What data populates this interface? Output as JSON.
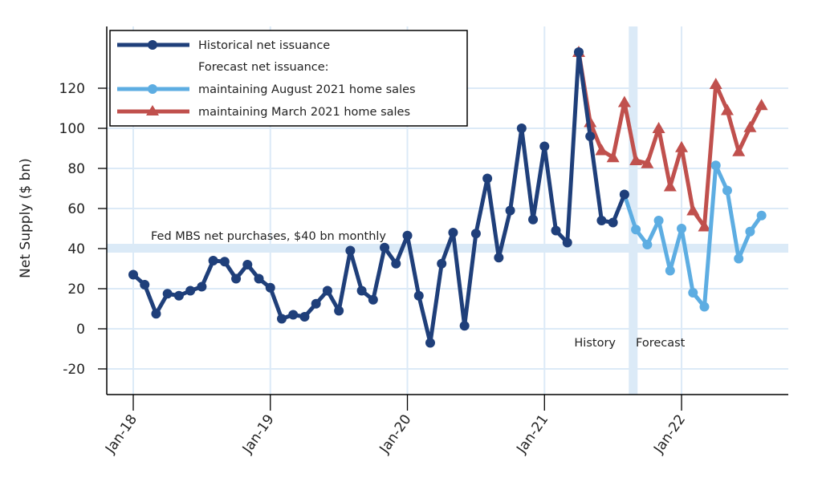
{
  "chart_data": {
    "type": "line",
    "title": "",
    "xlabel": "",
    "ylabel": "Net Supply ($ bn)",
    "ylim": [
      -32,
      145
    ],
    "yticks": [
      -20,
      0,
      20,
      40,
      60,
      80,
      100,
      120
    ],
    "ytick_labels": [
      "-20",
      "0",
      "20",
      "40",
      "60",
      "80",
      "100",
      "120"
    ],
    "x_start": "2018-01",
    "x_end": "2022-08",
    "x_unit": "month",
    "xticks": [
      "Jan-18",
      "Jan-19",
      "Jan-20",
      "Jan-21",
      "Jan-22"
    ],
    "xtick_months": [
      0,
      12,
      24,
      36,
      48
    ],
    "grid": true,
    "legend": {
      "placement": "top-left",
      "entries": [
        {
          "label": "Historical net issuance",
          "series": "historical"
        },
        {
          "label": "Forecast net issuance:",
          "series": null
        },
        {
          "label": "maintaining August 2021 home sales",
          "series": "forecast_aug"
        },
        {
          "label": "maintaining March 2021 home sales",
          "series": "forecast_mar"
        }
      ]
    },
    "series": [
      {
        "name": "Historical net issuance",
        "key": "historical",
        "color": "#1f3f7a",
        "marker": "circle",
        "start_month": 0,
        "values": [
          27,
          22,
          7.5,
          17.5,
          16.5,
          19,
          21,
          34,
          33.5,
          25,
          32,
          25,
          20.5,
          5,
          7,
          6,
          12.5,
          19,
          9,
          39,
          19,
          14.5,
          40.5,
          32.5,
          46.5,
          16.5,
          -7,
          32.5,
          48,
          1.5,
          47.5,
          75,
          35.5,
          59,
          100,
          54.5,
          91,
          49,
          43,
          138,
          96,
          54,
          53,
          67
        ]
      },
      {
        "name": "maintaining August 2021 home sales",
        "key": "forecast_aug",
        "color": "#5dade2",
        "marker": "circle",
        "start_month": 43,
        "values": [
          67,
          49.5,
          42,
          54,
          29,
          50,
          18,
          11,
          81.5,
          69,
          35,
          48.5,
          56.5
        ]
      },
      {
        "name": "maintaining March 2021 home sales",
        "key": "forecast_mar",
        "color": "#c0504d",
        "marker": "triangle",
        "start_month": 39,
        "values": [
          138,
          103,
          89,
          85.5,
          113,
          84,
          82.5,
          100,
          71,
          90.5,
          59,
          51,
          122,
          109,
          88.5,
          100.5,
          111.5
        ]
      }
    ],
    "annotations": [
      {
        "text": "Fed MBS net purchases, $40 bn monthly",
        "type": "horizontal-band",
        "y": 40
      },
      {
        "text": "History",
        "type": "label",
        "side": "left-of-divider"
      },
      {
        "text": "Forecast",
        "type": "label",
        "side": "right-of-divider"
      },
      {
        "type": "vertical-band",
        "month": 43.8
      }
    ]
  }
}
